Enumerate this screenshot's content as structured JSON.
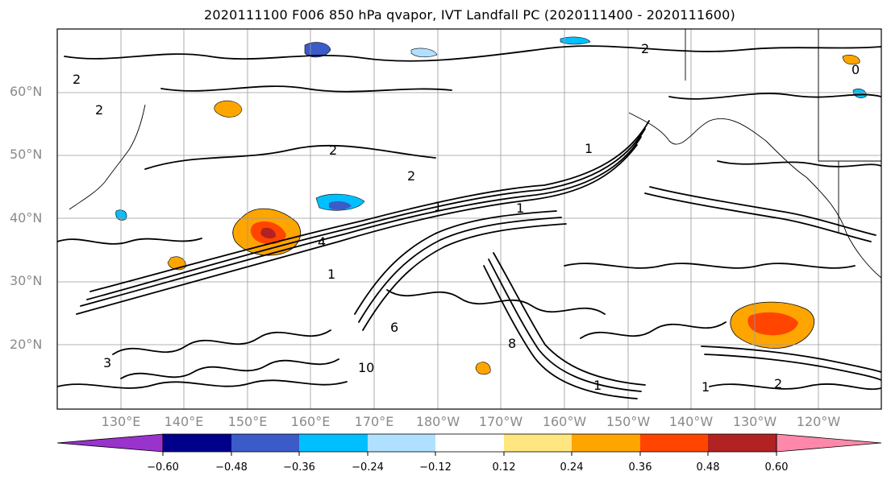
{
  "title": "2020111100 F006 850 hPa qvapor, IVT Landfall PC (2020111400 - 2020111600)",
  "lat_labels": [
    "60°N",
    "50°N",
    "40°N",
    "30°N",
    "20°N"
  ],
  "lon_labels": [
    "130°E",
    "140°E",
    "150°E",
    "160°E",
    "170°E",
    "180°W",
    "170°W",
    "160°W",
    "150°W",
    "140°W",
    "130°W",
    "120°W"
  ],
  "contour_labels": [
    "2",
    "2",
    "2",
    "2",
    "2",
    "1",
    "1",
    "4",
    "1",
    "1",
    "8",
    "6",
    "10",
    "3",
    "1",
    "1",
    "2",
    "0"
  ],
  "colorbar": {
    "tick_labels": [
      "−0.60",
      "−0.48",
      "−0.36",
      "−0.24",
      "−0.12",
      "0.12",
      "0.24",
      "0.36",
      "0.48",
      "0.60"
    ],
    "colors": [
      "#9933cc",
      "#00008b",
      "#3a5bc8",
      "#00bfff",
      "#b0e0ff",
      "#ffffff",
      "#ffe680",
      "#ffa500",
      "#ff4500",
      "#b22222",
      "#ff88aa"
    ]
  },
  "shading_levels": [
    -0.6,
    -0.48,
    -0.36,
    -0.24,
    -0.12,
    0.12,
    0.24,
    0.36,
    0.48,
    0.6
  ]
}
